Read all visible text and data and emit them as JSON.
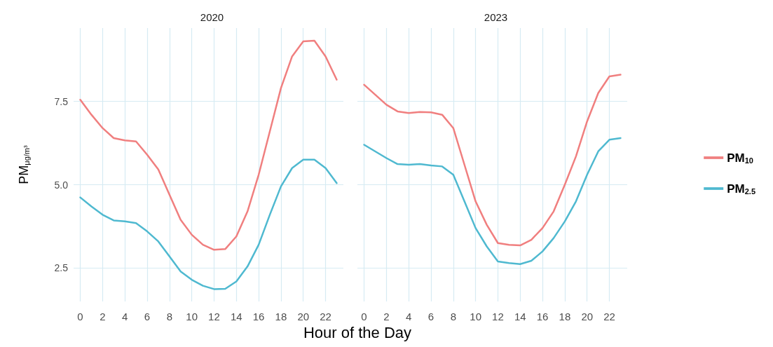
{
  "chart_data": [
    {
      "type": "line",
      "title": "2020",
      "xlabel": "Hour of the Day",
      "ylabel": "PM$_{μg/m³}$",
      "x": [
        0,
        1,
        2,
        3,
        4,
        5,
        6,
        7,
        8,
        9,
        10,
        11,
        12,
        13,
        14,
        15,
        16,
        17,
        18,
        19,
        20,
        21,
        22,
        23
      ],
      "xlim": [
        -0.6,
        23.6
      ],
      "xticks": [
        0,
        2,
        4,
        6,
        8,
        10,
        12,
        14,
        16,
        18,
        20,
        22
      ],
      "ylim": [
        1.5,
        9.7
      ],
      "yticks": [
        {
          "value": 2.5,
          "label": "2.5"
        },
        {
          "value": 5,
          "label": "5.0"
        },
        {
          "value": 7.5,
          "label": "7.5"
        }
      ],
      "grid": true,
      "legend": false,
      "marker": "none",
      "line_style": "solid",
      "series": [
        {
          "color": "#f07f7f",
          "values": [
            7.55,
            7.1,
            6.7,
            6.4,
            6.33,
            6.3,
            5.9,
            5.46,
            4.7,
            3.95,
            3.5,
            3.2,
            3.05,
            3.07,
            3.45,
            4.2,
            5.3,
            6.6,
            7.9,
            8.85,
            9.3,
            9.32,
            8.85,
            8.15
          ]
        },
        {
          "color": "#4fb9d0",
          "values": [
            4.62,
            4.35,
            4.1,
            3.93,
            3.9,
            3.85,
            3.6,
            3.3,
            2.85,
            2.4,
            2.15,
            1.97,
            1.87,
            1.88,
            2.1,
            2.55,
            3.2,
            4.1,
            4.95,
            5.5,
            5.75,
            5.75,
            5.5,
            5.05
          ]
        }
      ]
    },
    {
      "type": "line",
      "title": "2023",
      "x": [
        0,
        1,
        2,
        3,
        4,
        5,
        6,
        7,
        8,
        9,
        10,
        11,
        12,
        13,
        14,
        15,
        16,
        17,
        18,
        19,
        20,
        21,
        22,
        23
      ],
      "xlim": [
        -0.6,
        23.6
      ],
      "xticks": [
        0,
        2,
        4,
        6,
        8,
        10,
        12,
        14,
        16,
        18,
        20,
        22
      ],
      "ylim": [
        1.5,
        9.7
      ],
      "yticks": [
        2.5,
        5,
        7.5
      ],
      "tick_labels": "x",
      "grid": true,
      "legend": "right",
      "marker": "none",
      "line_style": "solid",
      "series": [
        {
          "name": "PM$_{10}$",
          "color": "#f07f7f",
          "values": [
            8.0,
            7.7,
            7.4,
            7.2,
            7.15,
            7.18,
            7.17,
            7.1,
            6.7,
            5.6,
            4.5,
            3.8,
            3.25,
            3.2,
            3.18,
            3.35,
            3.7,
            4.2,
            5.0,
            5.85,
            6.9,
            7.75,
            8.25,
            8.3
          ]
        },
        {
          "name": "PM$_{2.5}$",
          "color": "#4fb9d0",
          "values": [
            6.2,
            6.0,
            5.8,
            5.62,
            5.6,
            5.62,
            5.58,
            5.55,
            5.3,
            4.5,
            3.7,
            3.15,
            2.7,
            2.65,
            2.62,
            2.72,
            3.0,
            3.4,
            3.9,
            4.5,
            5.3,
            6.0,
            6.35,
            6.4
          ]
        }
      ]
    }
  ]
}
